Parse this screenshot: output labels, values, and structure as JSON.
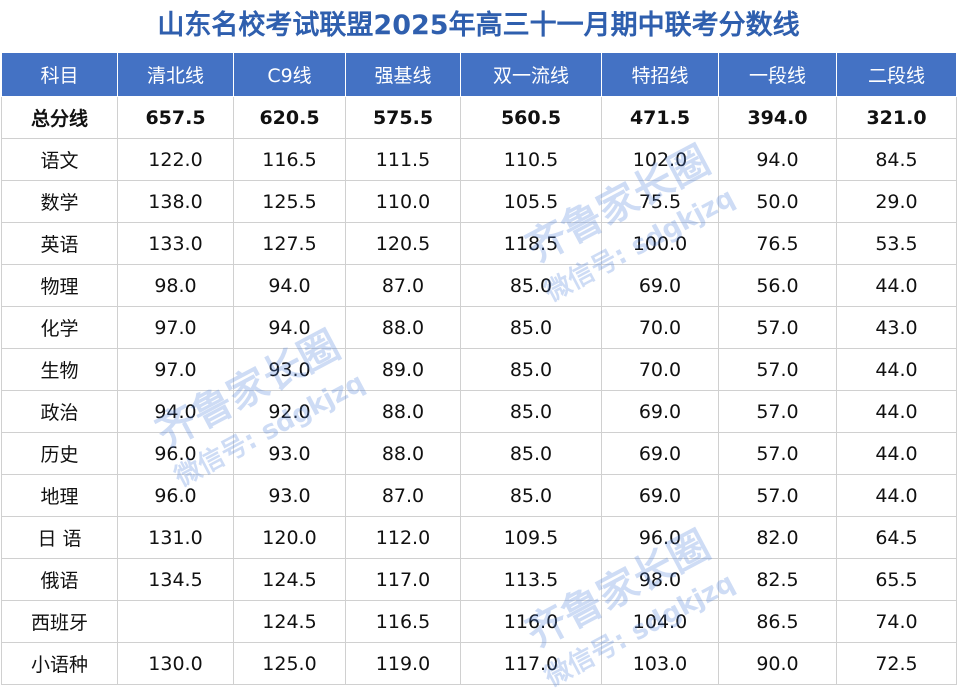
{
  "title": "山东名校考试联盟2025年高三十一月期中联考分数线",
  "table": {
    "header": [
      "科目",
      "清北线",
      "C9线",
      "强基线",
      "双一流线",
      "特招线",
      "一段线",
      "二段线"
    ],
    "rows": [
      [
        "总分线",
        "657.5",
        "620.5",
        "575.5",
        "560.5",
        "471.5",
        "394.0",
        "321.0"
      ],
      [
        "语文",
        "122.0",
        "116.5",
        "111.5",
        "110.5",
        "102.0",
        "94.0",
        "84.5"
      ],
      [
        "数学",
        "138.0",
        "125.5",
        "110.0",
        "105.5",
        "75.5",
        "50.0",
        "29.0"
      ],
      [
        "英语",
        "133.0",
        "127.5",
        "120.5",
        "118.5",
        "100.0",
        "76.5",
        "53.5"
      ],
      [
        "物理",
        "98.0",
        "94.0",
        "87.0",
        "85.0",
        "69.0",
        "56.0",
        "44.0"
      ],
      [
        "化学",
        "97.0",
        "94.0",
        "88.0",
        "85.0",
        "70.0",
        "57.0",
        "43.0"
      ],
      [
        "生物",
        "97.0",
        "93.0",
        "89.0",
        "85.0",
        "70.0",
        "57.0",
        "44.0"
      ],
      [
        "政治",
        "94.0",
        "92.0",
        "88.0",
        "85.0",
        "69.0",
        "57.0",
        "44.0"
      ],
      [
        "历史",
        "96.0",
        "93.0",
        "88.0",
        "85.0",
        "69.0",
        "57.0",
        "44.0"
      ],
      [
        "地理",
        "96.0",
        "93.0",
        "87.0",
        "85.0",
        "69.0",
        "57.0",
        "44.0"
      ],
      [
        "日 语",
        "131.0",
        "120.0",
        "112.0",
        "109.5",
        "96.0",
        "82.0",
        "64.5"
      ],
      [
        "俄语",
        "134.5",
        "124.5",
        "117.0",
        "113.5",
        "98.0",
        "82.5",
        "65.5"
      ],
      [
        "西班牙",
        null,
        "124.5",
        "116.5",
        "116.0",
        "104.0",
        "86.5",
        "74.0"
      ],
      [
        "小语种",
        "130.0",
        "125.0",
        "119.0",
        "117.0",
        "103.0",
        "90.0",
        "72.5"
      ]
    ]
  },
  "watermark": {
    "brand": "齐鲁家长圈",
    "wechat": "微信号: sdgkjzq"
  }
}
